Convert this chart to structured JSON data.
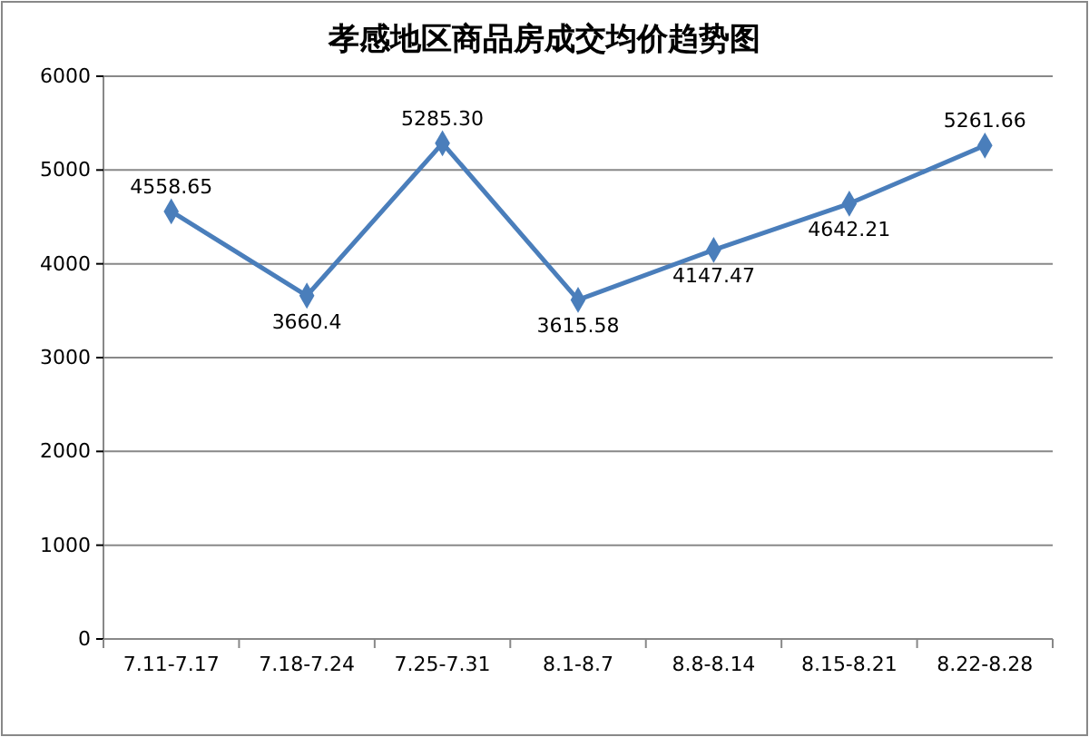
{
  "chart_data": {
    "type": "line",
    "title": "孝感地区商品房成交均价趋势图",
    "categories": [
      "7.11-7.17",
      "7.18-7.24",
      "7.25-7.31",
      "8.1-8.7",
      "8.8-8.14",
      "8.15-8.21",
      "8.22-8.28"
    ],
    "series": [
      {
        "color": "#4a7ebb",
        "values": [
          4558.65,
          3660.4,
          5285.3,
          3615.58,
          4147.47,
          4642.21,
          5261.66
        ],
        "value_labels": [
          "4558.65",
          "3660.4",
          "5285.30",
          "3615.58",
          "4147.47",
          "4642.21",
          "5261.66"
        ]
      }
    ],
    "ylim": [
      0,
      6000
    ],
    "yticks": [
      0,
      1000,
      2000,
      3000,
      4000,
      5000,
      6000
    ],
    "grid": "y",
    "marker": "diamond",
    "line_style": "solid"
  }
}
